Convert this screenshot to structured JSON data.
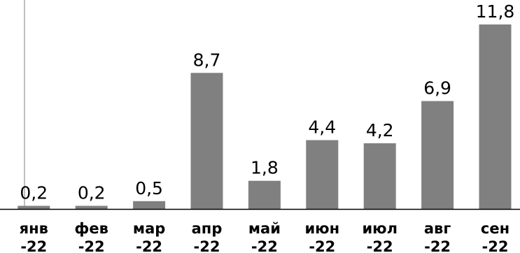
{
  "chart_data": {
    "type": "bar",
    "categories": [
      [
        "янв",
        "-22"
      ],
      [
        "фев",
        "-22"
      ],
      [
        "мар",
        "-22"
      ],
      [
        "апр",
        "-22"
      ],
      [
        "май",
        "-22"
      ],
      [
        "июн",
        "-22"
      ],
      [
        "июл",
        "-22"
      ],
      [
        "авг",
        "-22"
      ],
      [
        "сен",
        "-22"
      ]
    ],
    "values": [
      0.2,
      0.2,
      0.5,
      8.7,
      1.8,
      4.4,
      4.2,
      6.9,
      11.8
    ],
    "value_labels": [
      "0,2",
      "0,2",
      "0,5",
      "8,7",
      "1,8",
      "4,4",
      "4,2",
      "6,9",
      "11,8"
    ],
    "ylim": [
      0,
      12.2
    ],
    "grid": false,
    "legend": "none",
    "colors": {
      "bar": "#808080",
      "axis": "#000000",
      "vertical_line": "#bfbfbf"
    }
  }
}
